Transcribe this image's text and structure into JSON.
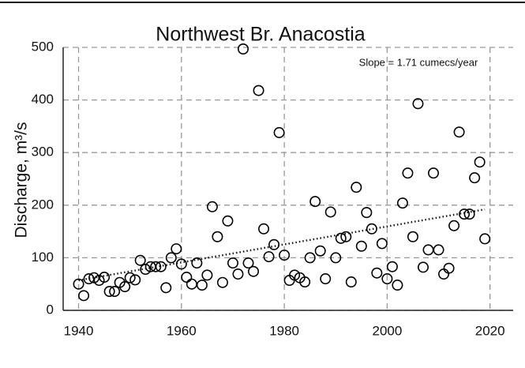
{
  "chart_data": {
    "type": "scatter",
    "title": "Northwest Br. Anacostia",
    "y_label": "Discharge, m³/s",
    "annotation": "Slope = 1.71 cumecs/year",
    "xlim": [
      1937,
      2024.5
    ],
    "ylim": [
      0,
      500
    ],
    "xticks": [
      1940,
      1960,
      1980,
      2000,
      2020
    ],
    "yticks": [
      0,
      100,
      200,
      300,
      400,
      500
    ],
    "grid": true,
    "color": "#000000",
    "x": [
      1940,
      1941,
      1942,
      1943,
      1944,
      1945,
      1946,
      1947,
      1948,
      1949,
      1950,
      1951,
      1952,
      1953,
      1954,
      1955,
      1956,
      1957,
      1958,
      1959,
      1960,
      1961,
      1962,
      1963,
      1964,
      1965,
      1966,
      1967,
      1968,
      1969,
      1970,
      1971,
      1972,
      1973,
      1974,
      1975,
      1976,
      1977,
      1978,
      1979,
      1980,
      1981,
      1982,
      1983,
      1984,
      1985,
      1986,
      1987,
      1988,
      1989,
      1990,
      1991,
      1992,
      1993,
      1994,
      1995,
      1996,
      1997,
      1998,
      1999,
      2000,
      2001,
      2002,
      2003,
      2004,
      2005,
      2006,
      2007,
      2008,
      2009,
      2010,
      2011,
      2012,
      2013,
      2014,
      2015,
      2016,
      2017,
      2018,
      2019
    ],
    "values": [
      50,
      28,
      60,
      62,
      57,
      63,
      36,
      36,
      53,
      45,
      62,
      58,
      95,
      78,
      83,
      83,
      83,
      43,
      100,
      117,
      88,
      63,
      50,
      90,
      48,
      67,
      197,
      140,
      53,
      170,
      90,
      69,
      497,
      90,
      74,
      418,
      155,
      102,
      125,
      338,
      105,
      57,
      67,
      62,
      54,
      100,
      207,
      113,
      60,
      187,
      100,
      137,
      140,
      54,
      234,
      122,
      186,
      155,
      71,
      127,
      60,
      83,
      48,
      204,
      261,
      140,
      393,
      82,
      115,
      261,
      115,
      69,
      80,
      161,
      339,
      183,
      183,
      252,
      282,
      136
    ],
    "trendline": {
      "x": [
        1940,
        2019
      ],
      "values": [
        57,
        192
      ]
    }
  }
}
